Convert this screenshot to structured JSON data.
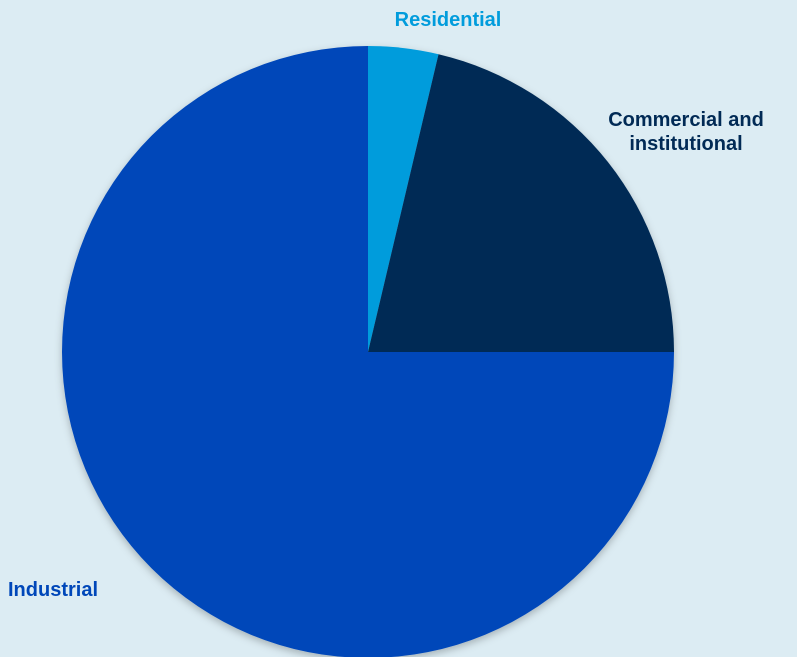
{
  "chart_data": {
    "type": "pie",
    "slices": [
      {
        "label": "Residential",
        "value": 3.7,
        "color": "#019cdc"
      },
      {
        "label": "Commercial and\ninstitutional",
        "value": 21.3,
        "color": "#012a55"
      },
      {
        "label": "Industrial",
        "value": 75.0,
        "color": "#0047b9"
      }
    ],
    "start_angle": "12 o'clock",
    "direction": "clockwise",
    "legend": "none"
  }
}
